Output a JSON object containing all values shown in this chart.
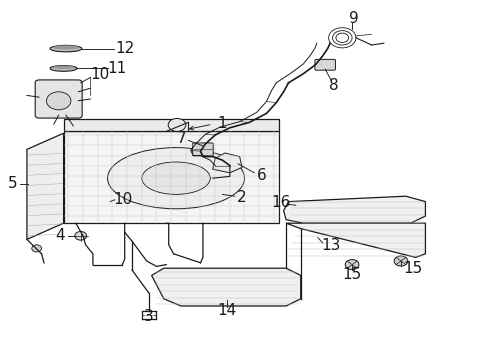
{
  "bg_color": "#ffffff",
  "line_color": "#1a1a1a",
  "fig_width": 4.89,
  "fig_height": 3.6,
  "dpi": 100,
  "label_fontsize": 11,
  "label_positions": {
    "1": [
      0.435,
      0.555,
      0.415,
      0.525
    ],
    "2": [
      0.435,
      0.435,
      0.41,
      0.447
    ],
    "3": [
      0.315,
      0.115,
      0.315,
      0.155
    ],
    "4": [
      0.115,
      0.345,
      0.155,
      0.345
    ],
    "5": [
      0.09,
      0.47,
      0.13,
      0.47
    ],
    "6": [
      0.54,
      0.41,
      0.495,
      0.435
    ],
    "7": [
      0.38,
      0.6,
      0.405,
      0.59
    ],
    "8": [
      0.66,
      0.74,
      0.66,
      0.705
    ],
    "9": [
      0.735,
      0.94,
      0.72,
      0.895
    ],
    "10a": [
      0.3,
      0.685,
      0.28,
      0.655
    ],
    "10b": [
      0.25,
      0.42,
      0.245,
      0.445
    ],
    "11": [
      0.255,
      0.79,
      0.225,
      0.79
    ],
    "12": [
      0.27,
      0.87,
      0.225,
      0.87
    ],
    "13": [
      0.69,
      0.315,
      0.665,
      0.33
    ],
    "14": [
      0.465,
      0.135,
      0.465,
      0.165
    ],
    "15a": [
      0.715,
      0.12,
      0.715,
      0.155
    ],
    "15b": [
      0.81,
      0.225,
      0.81,
      0.26
    ],
    "16": [
      0.585,
      0.42,
      0.615,
      0.43
    ]
  }
}
